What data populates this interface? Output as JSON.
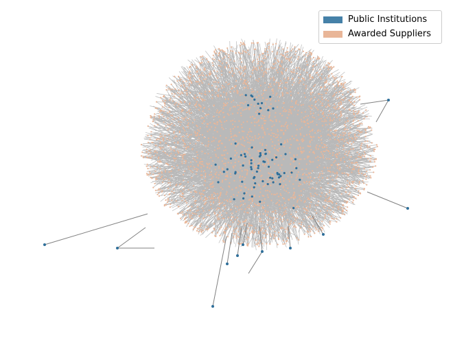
{
  "legend": {
    "items": [
      {
        "label": "Public Institutions",
        "color": "#4581a8"
      },
      {
        "label": "Awarded Suppliers",
        "color": "#e9b698"
      }
    ]
  },
  "colors": {
    "edge": "#808080",
    "institution_node": "#2f6f9a",
    "supplier_node": "#e9b698"
  }
}
